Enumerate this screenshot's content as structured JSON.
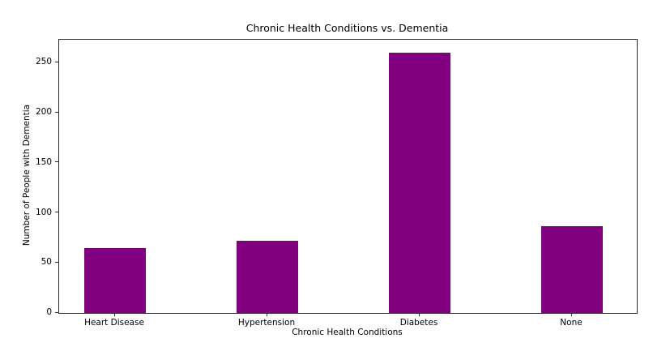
{
  "figure": {
    "background": "#ffffff"
  },
  "chart_data": {
    "type": "bar",
    "title": "Chronic Health Conditions vs. Dementia",
    "xlabel": "Chronic Health Conditions",
    "ylabel": "Number of People with Dementia",
    "categories": [
      "Heart Disease",
      "Hypertension",
      "Diabetes",
      "None"
    ],
    "values": [
      65,
      72,
      260,
      87
    ],
    "bar_color": "#800080",
    "ylim": [
      0,
      273
    ],
    "yticks": [
      0,
      50,
      100,
      150,
      200,
      250
    ],
    "grid": false,
    "legend_position": "none"
  }
}
